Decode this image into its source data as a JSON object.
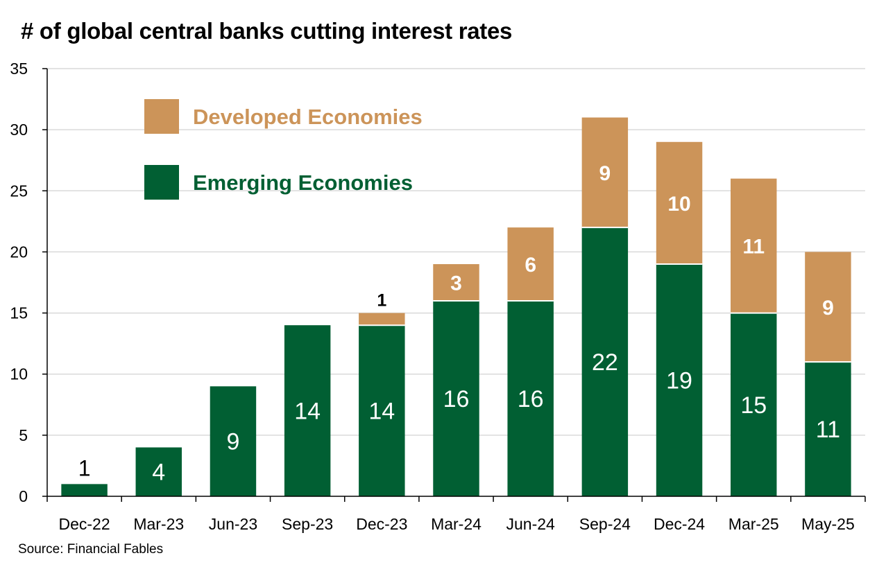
{
  "chart_data": {
    "type": "bar",
    "stacked": true,
    "title": "# of global central banks cutting interest rates",
    "source": "Source: Financial Fables",
    "xlabel": "",
    "ylabel": "",
    "ylim": [
      0,
      35
    ],
    "yticks": [
      0,
      5,
      10,
      15,
      20,
      25,
      30,
      35
    ],
    "grid": true,
    "legend_position": "top-left",
    "categories": [
      "Dec-22",
      "Mar-23",
      "Jun-23",
      "Sep-23",
      "Dec-23",
      "Mar-24",
      "Jun-24",
      "Sep-24",
      "Dec-24",
      "Mar-25",
      "May-25"
    ],
    "series": [
      {
        "name": "Emerging Economies",
        "color": "#015f33",
        "values": [
          1,
          4,
          9,
          14,
          14,
          16,
          16,
          22,
          19,
          15,
          11
        ]
      },
      {
        "name": "Developed Economies",
        "color": "#cc9459",
        "values": [
          0,
          0,
          0,
          0,
          1,
          3,
          6,
          9,
          10,
          11,
          9
        ]
      }
    ]
  }
}
